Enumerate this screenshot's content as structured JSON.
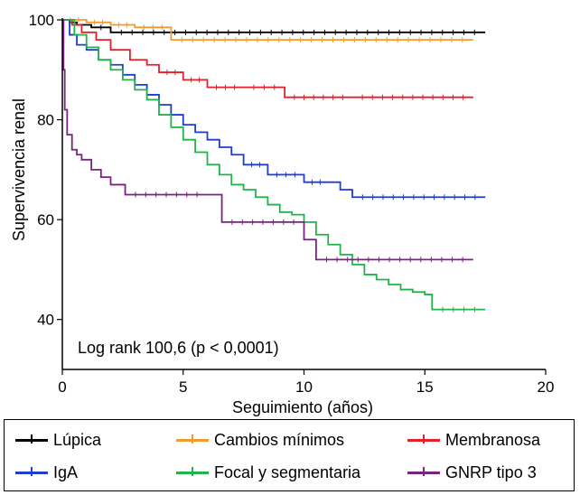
{
  "chart_data": {
    "type": "line",
    "subtype": "kaplan-meier step",
    "ylabel": "Supervivencia renal",
    "xlabel": "Seguimiento (años)",
    "xlim": [
      0,
      20
    ],
    "ylim": [
      30,
      100
    ],
    "xticks": [
      "0",
      "5",
      "10",
      "15",
      "20"
    ],
    "yticks": [
      "40",
      "60",
      "80",
      "100"
    ],
    "annotation": "Log rank 100,6 (p < 0,0001)",
    "grid": false,
    "legend_position": "bottom",
    "series": [
      {
        "name": "Lúpica",
        "color": "#000000",
        "x": [
          0,
          0.3,
          0.6,
          1.2,
          2,
          17.5
        ],
        "y": [
          100,
          99.5,
          99,
          98.5,
          97.5,
          97.5
        ]
      },
      {
        "name": "Cambios mínimos",
        "color": "#f29a2e",
        "x": [
          0,
          1,
          2,
          3,
          4.5,
          17
        ],
        "y": [
          100,
          99.5,
          99,
          98.5,
          96,
          96
        ]
      },
      {
        "name": "Membranosa",
        "color": "#e3202b",
        "x": [
          0,
          0.4,
          0.8,
          1.4,
          2,
          2.8,
          3.5,
          4,
          5,
          6,
          7.5,
          9.2,
          12,
          17
        ],
        "y": [
          100,
          99,
          97.5,
          96,
          94,
          92,
          91,
          89.5,
          88,
          86.5,
          86.5,
          84.5,
          84.5,
          84.5
        ]
      },
      {
        "name": "IgA",
        "color": "#1f3dd1",
        "x": [
          0,
          0.3,
          0.6,
          1,
          1.5,
          2,
          2.5,
          3,
          3.5,
          4,
          4.5,
          5,
          5.5,
          6,
          6.5,
          7,
          7.5,
          8.5,
          10,
          11,
          11.5,
          12,
          17.5
        ],
        "y": [
          100,
          97,
          95,
          94,
          92,
          91,
          89,
          87,
          85,
          83,
          81,
          79,
          77.5,
          76,
          74.5,
          73,
          71,
          69,
          67.5,
          67.5,
          66,
          64.5,
          64.5
        ]
      },
      {
        "name": "Focal y segmentaria",
        "color": "#22b24c",
        "x": [
          0,
          0.5,
          1,
          1.5,
          2,
          2.5,
          3,
          3.5,
          4,
          4.5,
          5,
          5.5,
          6,
          6.5,
          7,
          7.5,
          8,
          8.5,
          9,
          9.5,
          10,
          10.5,
          11,
          11.5,
          12,
          12.5,
          13,
          13.5,
          14,
          14.5,
          15,
          15.3,
          17.5
        ],
        "y": [
          100,
          97,
          94.5,
          92,
          90,
          88,
          86,
          84,
          81,
          78.5,
          76,
          73.5,
          71,
          69,
          67,
          66,
          64.5,
          63,
          61.5,
          61,
          59.5,
          57,
          55,
          53,
          51,
          49,
          48,
          47,
          46,
          45.5,
          45,
          42,
          42
        ]
      },
      {
        "name": "GNRP tipo 3",
        "color": "#7a2282",
        "x": [
          0,
          0.05,
          0.1,
          0.2,
          0.4,
          0.6,
          0.8,
          1.2,
          1.6,
          2,
          2.6,
          6,
          6.6,
          10,
          10.5,
          17
        ],
        "y": [
          100,
          90,
          82,
          77,
          74,
          73,
          72,
          70,
          68.5,
          67,
          65,
          65,
          59.5,
          56,
          52,
          52
        ]
      }
    ]
  }
}
